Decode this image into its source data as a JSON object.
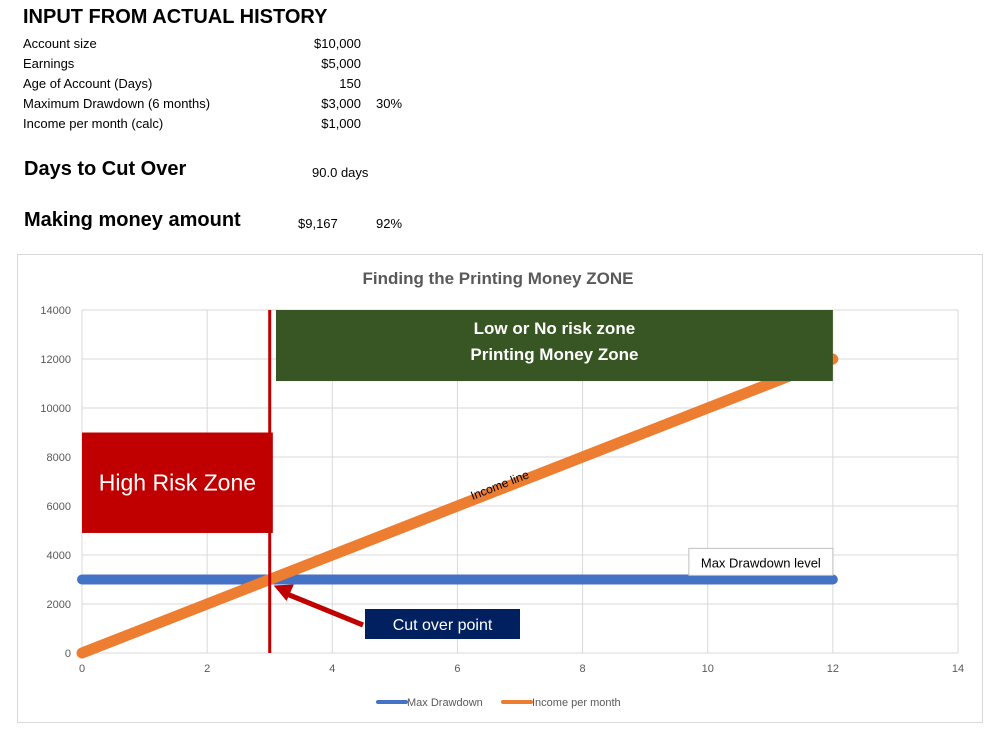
{
  "header": {
    "title": "INPUT FROM ACTUAL HISTORY"
  },
  "inputs": [
    {
      "label": "Account size",
      "value": "$10,000",
      "extra": ""
    },
    {
      "label": "Earnings",
      "value": "$5,000",
      "extra": ""
    },
    {
      "label": "Age of Account (Days)",
      "value": "150",
      "extra": ""
    },
    {
      "label": "Maximum Drawdown (6 months)",
      "value": "$3,000",
      "extra": "30%"
    },
    {
      "label": "Income per month (calc)",
      "value": "$1,000",
      "extra": ""
    }
  ],
  "cutover": {
    "label": "Days to Cut Over",
    "value": "90.0",
    "unit": "days"
  },
  "making": {
    "label": "Making money amount",
    "value": "$9,167",
    "percent": "92%"
  },
  "chart_data": {
    "type": "line",
    "title": "Finding the Printing Money ZONE",
    "xlim": [
      0,
      14
    ],
    "ylim": [
      0,
      14000
    ],
    "x_ticks": [
      0,
      2,
      4,
      6,
      8,
      10,
      12,
      14
    ],
    "y_ticks": [
      0,
      2000,
      4000,
      6000,
      8000,
      10000,
      12000,
      14000
    ],
    "grid": true,
    "legend_position": "bottom",
    "series": [
      {
        "name": "Max Drawdown",
        "color": "#4472c4",
        "x": [
          0,
          12
        ],
        "y": [
          3000,
          3000
        ]
      },
      {
        "name": "Income per month",
        "color": "#ed7d31",
        "x": [
          0,
          12
        ],
        "y": [
          0,
          12000
        ]
      }
    ],
    "annotations": {
      "high_risk": {
        "text": "High Risk Zone",
        "color": "#c00000",
        "x_range": [
          0,
          3.05
        ],
        "y_range": [
          4900,
          9000
        ]
      },
      "low_risk": {
        "line1": "Low or No risk zone",
        "line2": "Printing Money Zone",
        "color": "#375623",
        "x_range": [
          3.1,
          12
        ],
        "y_range": [
          11100,
          14000
        ]
      },
      "cutover_line": {
        "x": 3.0,
        "color": "#c00000"
      },
      "income_label": {
        "text": "Income line",
        "x": 6.7,
        "y": 6700
      },
      "max_dd_label": {
        "text": "Max Drawdown level",
        "x": 12,
        "y": 3700
      },
      "cut_over_point": {
        "text": "Cut over point",
        "color": "#002060",
        "point_x": 3.0,
        "point_y": 3000
      }
    }
  }
}
